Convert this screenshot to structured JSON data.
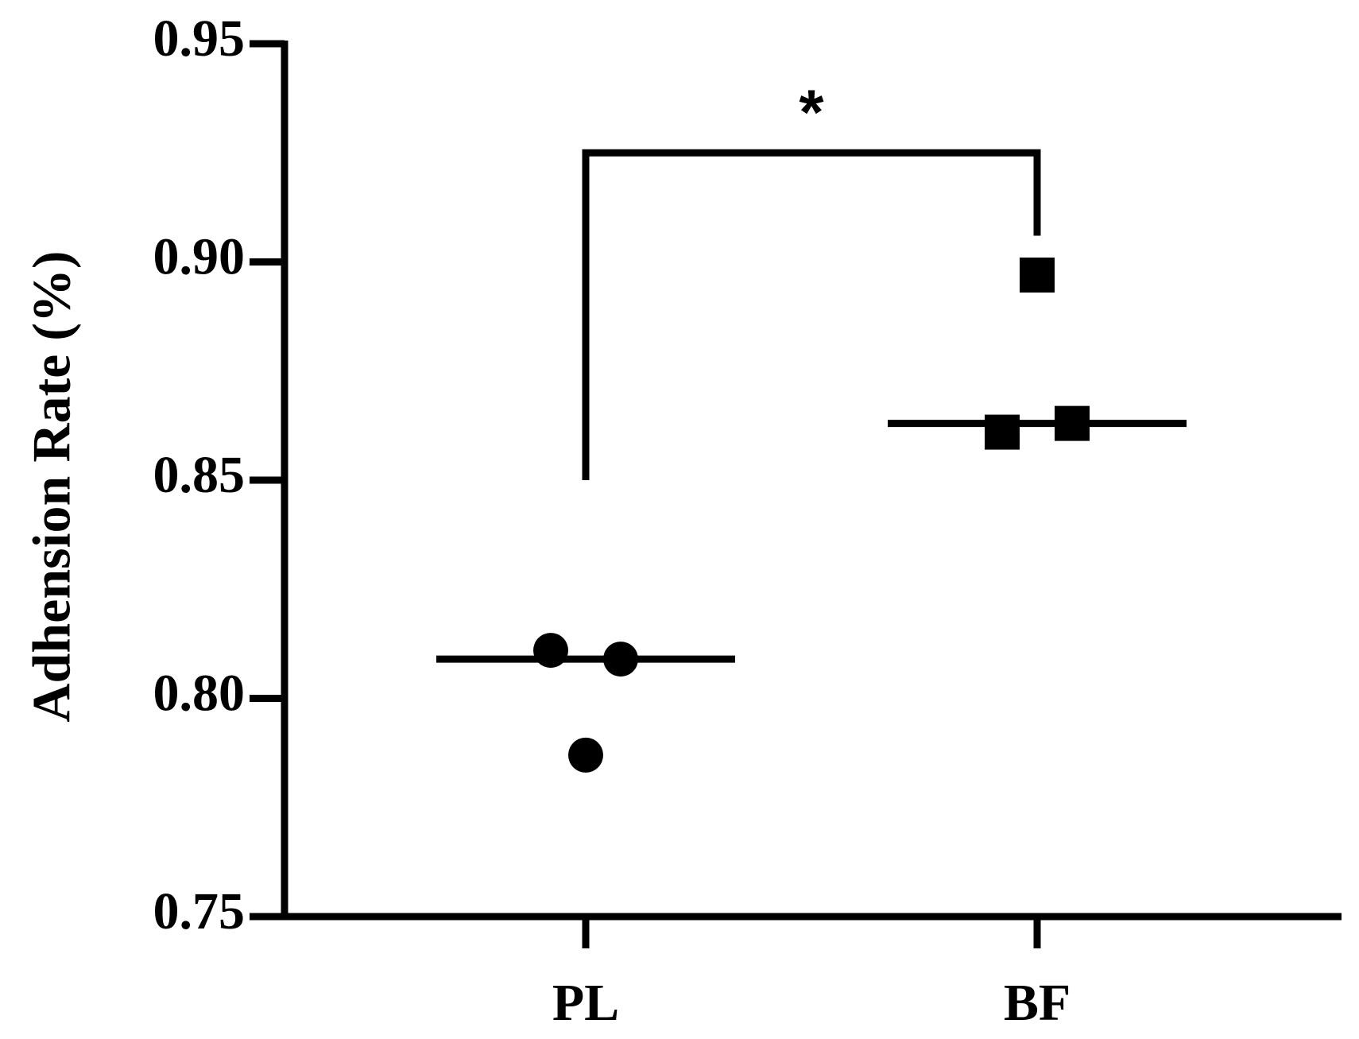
{
  "chart_data": {
    "type": "dot",
    "y_label": "Adhension Rate (%)",
    "categories": [
      "PL",
      "BF"
    ],
    "values": [
      [
        0.811,
        0.809,
        0.787
      ],
      [
        0.897,
        0.861,
        0.863
      ]
    ],
    "medians": [
      0.809,
      0.863
    ],
    "markers": [
      "circle",
      "square"
    ],
    "color": "#000000",
    "ylim": [
      0.75,
      0.95
    ],
    "yticks": [
      0.75,
      {
        "value": 0.8,
        "label": "0.80"
      },
      0.85,
      {
        "value": 0.9,
        "label": "0.90"
      },
      0.95
    ],
    "annotation": {
      "text": "*",
      "top": 0.925,
      "left_end": 0.85,
      "right_end": 0.906
    }
  }
}
